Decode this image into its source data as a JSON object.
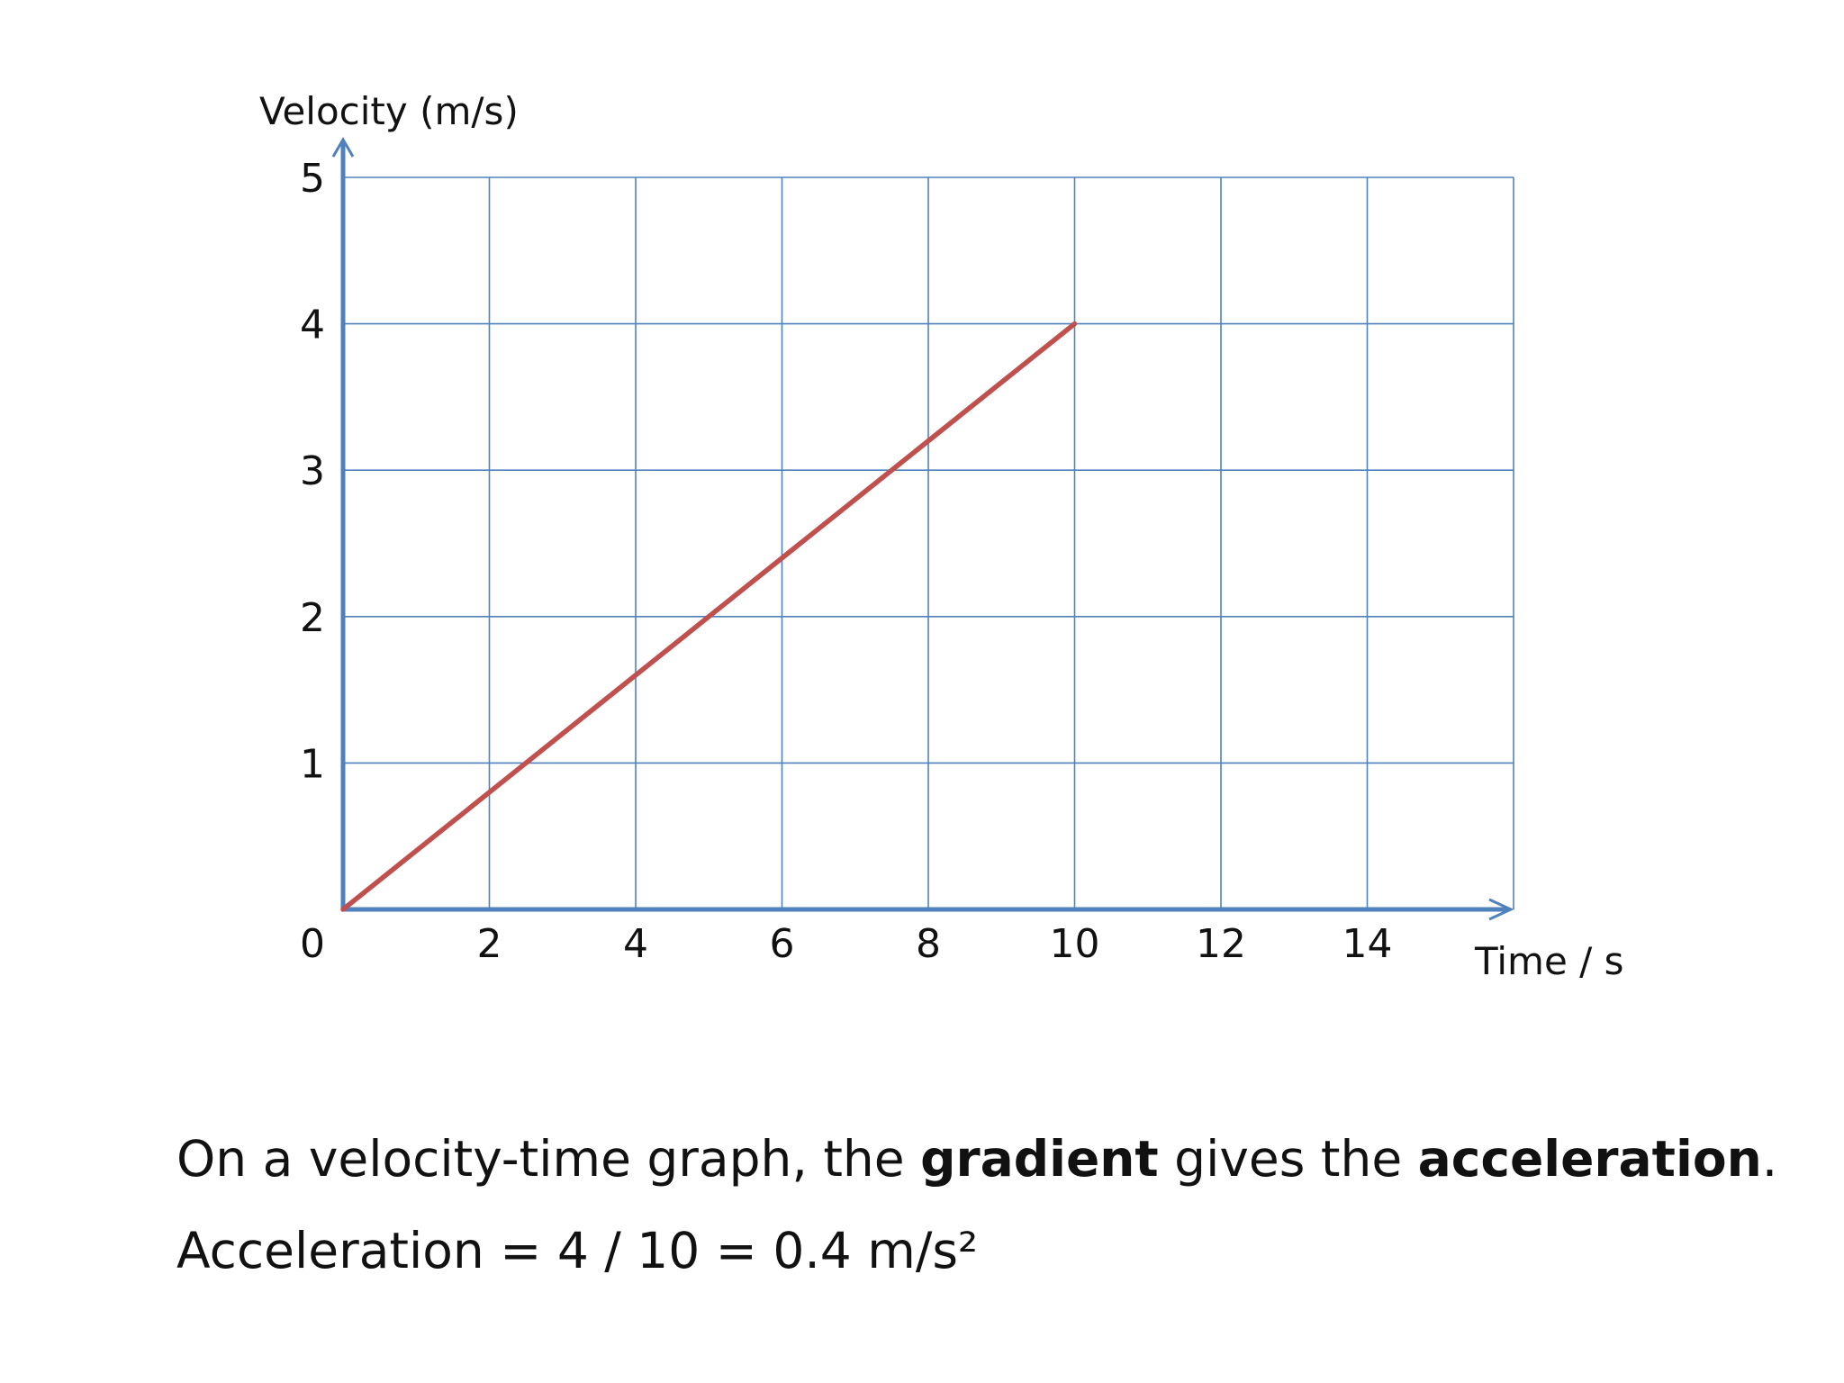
{
  "chart_data": {
    "type": "line",
    "xlabel": "Time / s",
    "ylabel": "Velocity (m/s)",
    "x_ticks": [
      "0",
      "2",
      "4",
      "6",
      "8",
      "10",
      "12",
      "14"
    ],
    "y_ticks": [
      "0",
      "1",
      "2",
      "3",
      "4",
      "5"
    ],
    "xlim": [
      0,
      16
    ],
    "ylim": [
      0,
      5
    ],
    "grid": true,
    "series": [
      {
        "x": [
          0,
          10
        ],
        "y": [
          0,
          4
        ]
      }
    ],
    "colors": {
      "axis": "#4f81bd",
      "grid": "#4f81bd",
      "line": "#c0504d"
    }
  },
  "caption": {
    "line1": {
      "part1": "On a velocity-time graph, the ",
      "bold1": "gradient",
      "part2": " gives the ",
      "bold2": "acceleration",
      "part3": "."
    },
    "line2": "Acceleration = 4 / 10 = 0.4 m/s²"
  }
}
